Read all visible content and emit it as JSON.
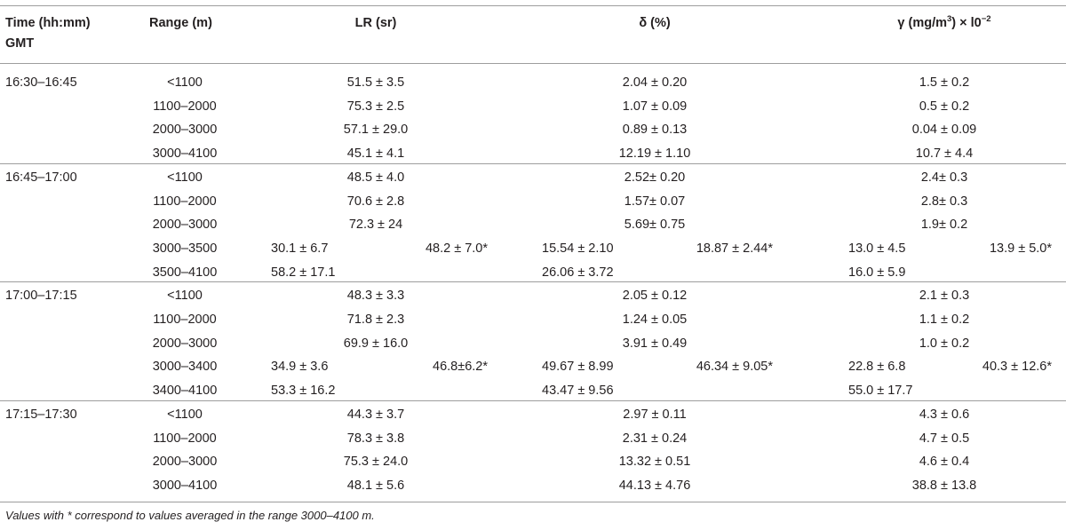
{
  "headers": {
    "time": "Time (hh:mm)",
    "time_line2": "GMT",
    "range": "Range (m)",
    "lr": "LR (sr)",
    "delta": "δ (%)",
    "gamma_pre": "γ (mg/m",
    "gamma_sup": "3",
    "gamma_mid": ") × l0",
    "gamma_exp": "−2"
  },
  "groups": [
    {
      "time": "16:30–16:45",
      "rows": [
        {
          "range": "<1100",
          "lr": "51.5 ± 3.5",
          "delta": "2.04 ± 0.20",
          "gamma": "1.5 ± 0.2"
        },
        {
          "range": "1100–2000",
          "lr": "75.3 ± 2.5",
          "delta": "1.07 ± 0.09",
          "gamma": "0.5 ± 0.2"
        },
        {
          "range": "2000–3000",
          "lr": "57.1 ± 29.0",
          "delta": "0.89 ± 0.13",
          "gamma": "0.04 ± 0.09"
        },
        {
          "range": "3000–4100",
          "lr": "45.1 ± 4.1",
          "delta": "12.19 ± 1.10",
          "gamma": "10.7 ± 4.4"
        }
      ]
    },
    {
      "time": "16:45–17:00",
      "rows": [
        {
          "range": "<1100",
          "lr": "48.5 ± 4.0",
          "delta": "2.52± 0.20",
          "gamma": "2.4± 0.3"
        },
        {
          "range": "1100–2000",
          "lr": "70.6 ± 2.8",
          "delta": "1.57± 0.07",
          "gamma": "2.8± 0.3"
        },
        {
          "range": "2000–3000",
          "lr": "72.3 ± 24",
          "delta": "5.69± 0.75",
          "gamma": "1.9± 0.2"
        },
        {
          "range": "3000–3500",
          "lr": "30.1 ± 6.7",
          "lr_avg": "48.2 ± 7.0*",
          "delta": "15.54 ± 2.10",
          "delta_avg": "18.87 ± 2.44*",
          "gamma": "13.0 ± 4.5",
          "gamma_avg": "13.9 ± 5.0*"
        },
        {
          "range": "3500–4100",
          "lr": "58.2 ± 17.1",
          "delta": "26.06 ± 3.72",
          "gamma": "16.0 ± 5.9"
        }
      ]
    },
    {
      "time": "17:00–17:15",
      "rows": [
        {
          "range": "<1100",
          "lr": "48.3 ± 3.3",
          "delta": "2.05 ± 0.12",
          "gamma": "2.1 ± 0.3"
        },
        {
          "range": "1100–2000",
          "lr": "71.8 ± 2.3",
          "delta": "1.24 ± 0.05",
          "gamma": "1.1 ± 0.2"
        },
        {
          "range": "2000–3000",
          "lr": "69.9 ± 16.0",
          "delta": "3.91 ± 0.49",
          "gamma": "1.0 ± 0.2"
        },
        {
          "range": "3000–3400",
          "lr": "34.9 ± 3.6",
          "lr_avg": "46.8±6.2*",
          "delta": "49.67 ± 8.99",
          "delta_avg": "46.34 ± 9.05*",
          "gamma": "22.8 ± 6.8",
          "gamma_avg": "40.3 ± 12.6*"
        },
        {
          "range": "3400–4100",
          "lr": "53.3 ± 16.2",
          "delta": "43.47 ± 9.56",
          "gamma": "55.0 ± 17.7"
        }
      ]
    },
    {
      "time": "17:15–17:30",
      "rows": [
        {
          "range": "<1100",
          "lr": "44.3 ± 3.7",
          "delta": "2.97 ± 0.11",
          "gamma": "4.3 ± 0.6"
        },
        {
          "range": "1100–2000",
          "lr": "78.3 ± 3.8",
          "delta": "2.31 ± 0.24",
          "gamma": "4.7 ± 0.5"
        },
        {
          "range": "2000–3000",
          "lr": "75.3 ± 24.0",
          "delta": "13.32 ± 0.51",
          "gamma": "4.6 ± 0.4"
        },
        {
          "range": "3000–4100",
          "lr": "48.1 ± 5.6",
          "delta": "44.13 ± 4.76",
          "gamma": "38.8 ± 13.8"
        }
      ]
    }
  ],
  "footnote": "Values with * correspond to values averaged in the range 3000–4100 m."
}
